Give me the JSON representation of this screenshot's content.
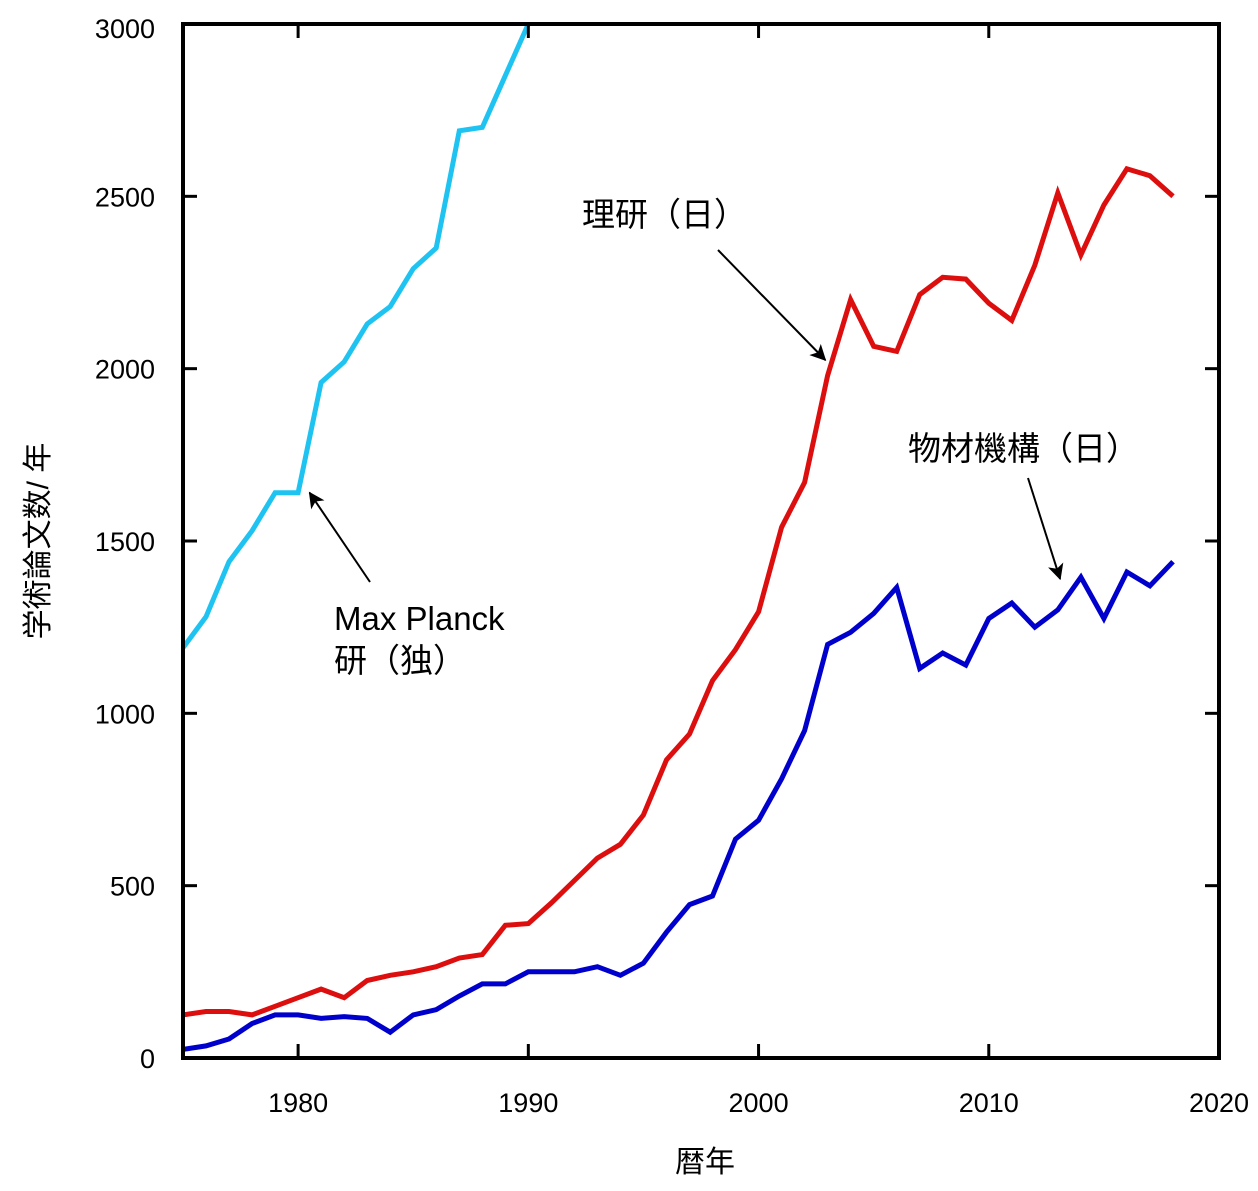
{
  "chart_data": {
    "type": "line",
    "xlabel": "暦年",
    "ylabel": "学術論文数/ 年",
    "xlim": [
      1975,
      2020
    ],
    "ylim": [
      0,
      3000
    ],
    "x_ticks": [
      1980,
      1990,
      2000,
      2010,
      2020
    ],
    "y_ticks": [
      0,
      500,
      1000,
      1500,
      2000,
      2500,
      3000
    ],
    "grid": false,
    "legend": "none",
    "series": [
      {
        "name": "Max Planck 研（独）",
        "color": "#1ec3f2",
        "x": [
          1975,
          1976,
          1977,
          1978,
          1979,
          1980,
          1981,
          1982,
          1983,
          1984,
          1985,
          1986,
          1987,
          1988,
          1989,
          1990
        ],
        "values": [
          1190,
          1280,
          1440,
          1530,
          1640,
          1640,
          1960,
          2020,
          2130,
          2180,
          2290,
          2350,
          2690,
          2700,
          2850,
          3000
        ]
      },
      {
        "name": "理研（日）",
        "color": "#dd0e0e",
        "x": [
          1975,
          1976,
          1977,
          1978,
          1979,
          1980,
          1981,
          1982,
          1983,
          1984,
          1985,
          1986,
          1987,
          1988,
          1989,
          1990,
          1991,
          1992,
          1993,
          1994,
          1995,
          1996,
          1997,
          1998,
          1999,
          2000,
          2001,
          2002,
          2003,
          2004,
          2005,
          2006,
          2007,
          2008,
          2009,
          2010,
          2011,
          2012,
          2013,
          2014,
          2015,
          2016,
          2017,
          2018
        ],
        "values": [
          125,
          135,
          135,
          125,
          150,
          175,
          200,
          175,
          225,
          240,
          250,
          265,
          290,
          300,
          385,
          390,
          450,
          515,
          580,
          620,
          705,
          865,
          940,
          1095,
          1185,
          1295,
          1540,
          1670,
          1980,
          2200,
          2065,
          2050,
          2215,
          2265,
          2260,
          2190,
          2140,
          2300,
          2510,
          2330,
          2475,
          2580,
          2560,
          2500
        ]
      },
      {
        "name": "物材機構（日）",
        "color": "#0000cc",
        "x": [
          1975,
          1976,
          1977,
          1978,
          1979,
          1980,
          1981,
          1982,
          1983,
          1984,
          1985,
          1986,
          1987,
          1988,
          1989,
          1990,
          1991,
          1992,
          1993,
          1994,
          1995,
          1996,
          1997,
          1998,
          1999,
          2000,
          2001,
          2002,
          2003,
          2004,
          2005,
          2006,
          2007,
          2008,
          2009,
          2010,
          2011,
          2012,
          2013,
          2014,
          2015,
          2016,
          2017,
          2018
        ],
        "values": [
          25,
          35,
          55,
          100,
          125,
          125,
          115,
          120,
          115,
          75,
          125,
          140,
          180,
          215,
          215,
          250,
          250,
          250,
          265,
          240,
          275,
          365,
          445,
          470,
          635,
          690,
          810,
          950,
          1200,
          1235,
          1290,
          1365,
          1130,
          1175,
          1140,
          1275,
          1320,
          1250,
          1300,
          1395,
          1275,
          1410,
          1370,
          1440
        ]
      }
    ],
    "annotations": [
      {
        "line1": "Max Planck",
        "line2": "研（独）",
        "series": 0,
        "point_x": 1980.5,
        "point_y": 1640
      },
      {
        "text": "理研（日）",
        "series": 1,
        "point_x": 2002.9,
        "point_y": 2025
      },
      {
        "text": "物材機構（日）",
        "series": 2,
        "point_x": 2013.1,
        "point_y": 1390
      }
    ]
  }
}
